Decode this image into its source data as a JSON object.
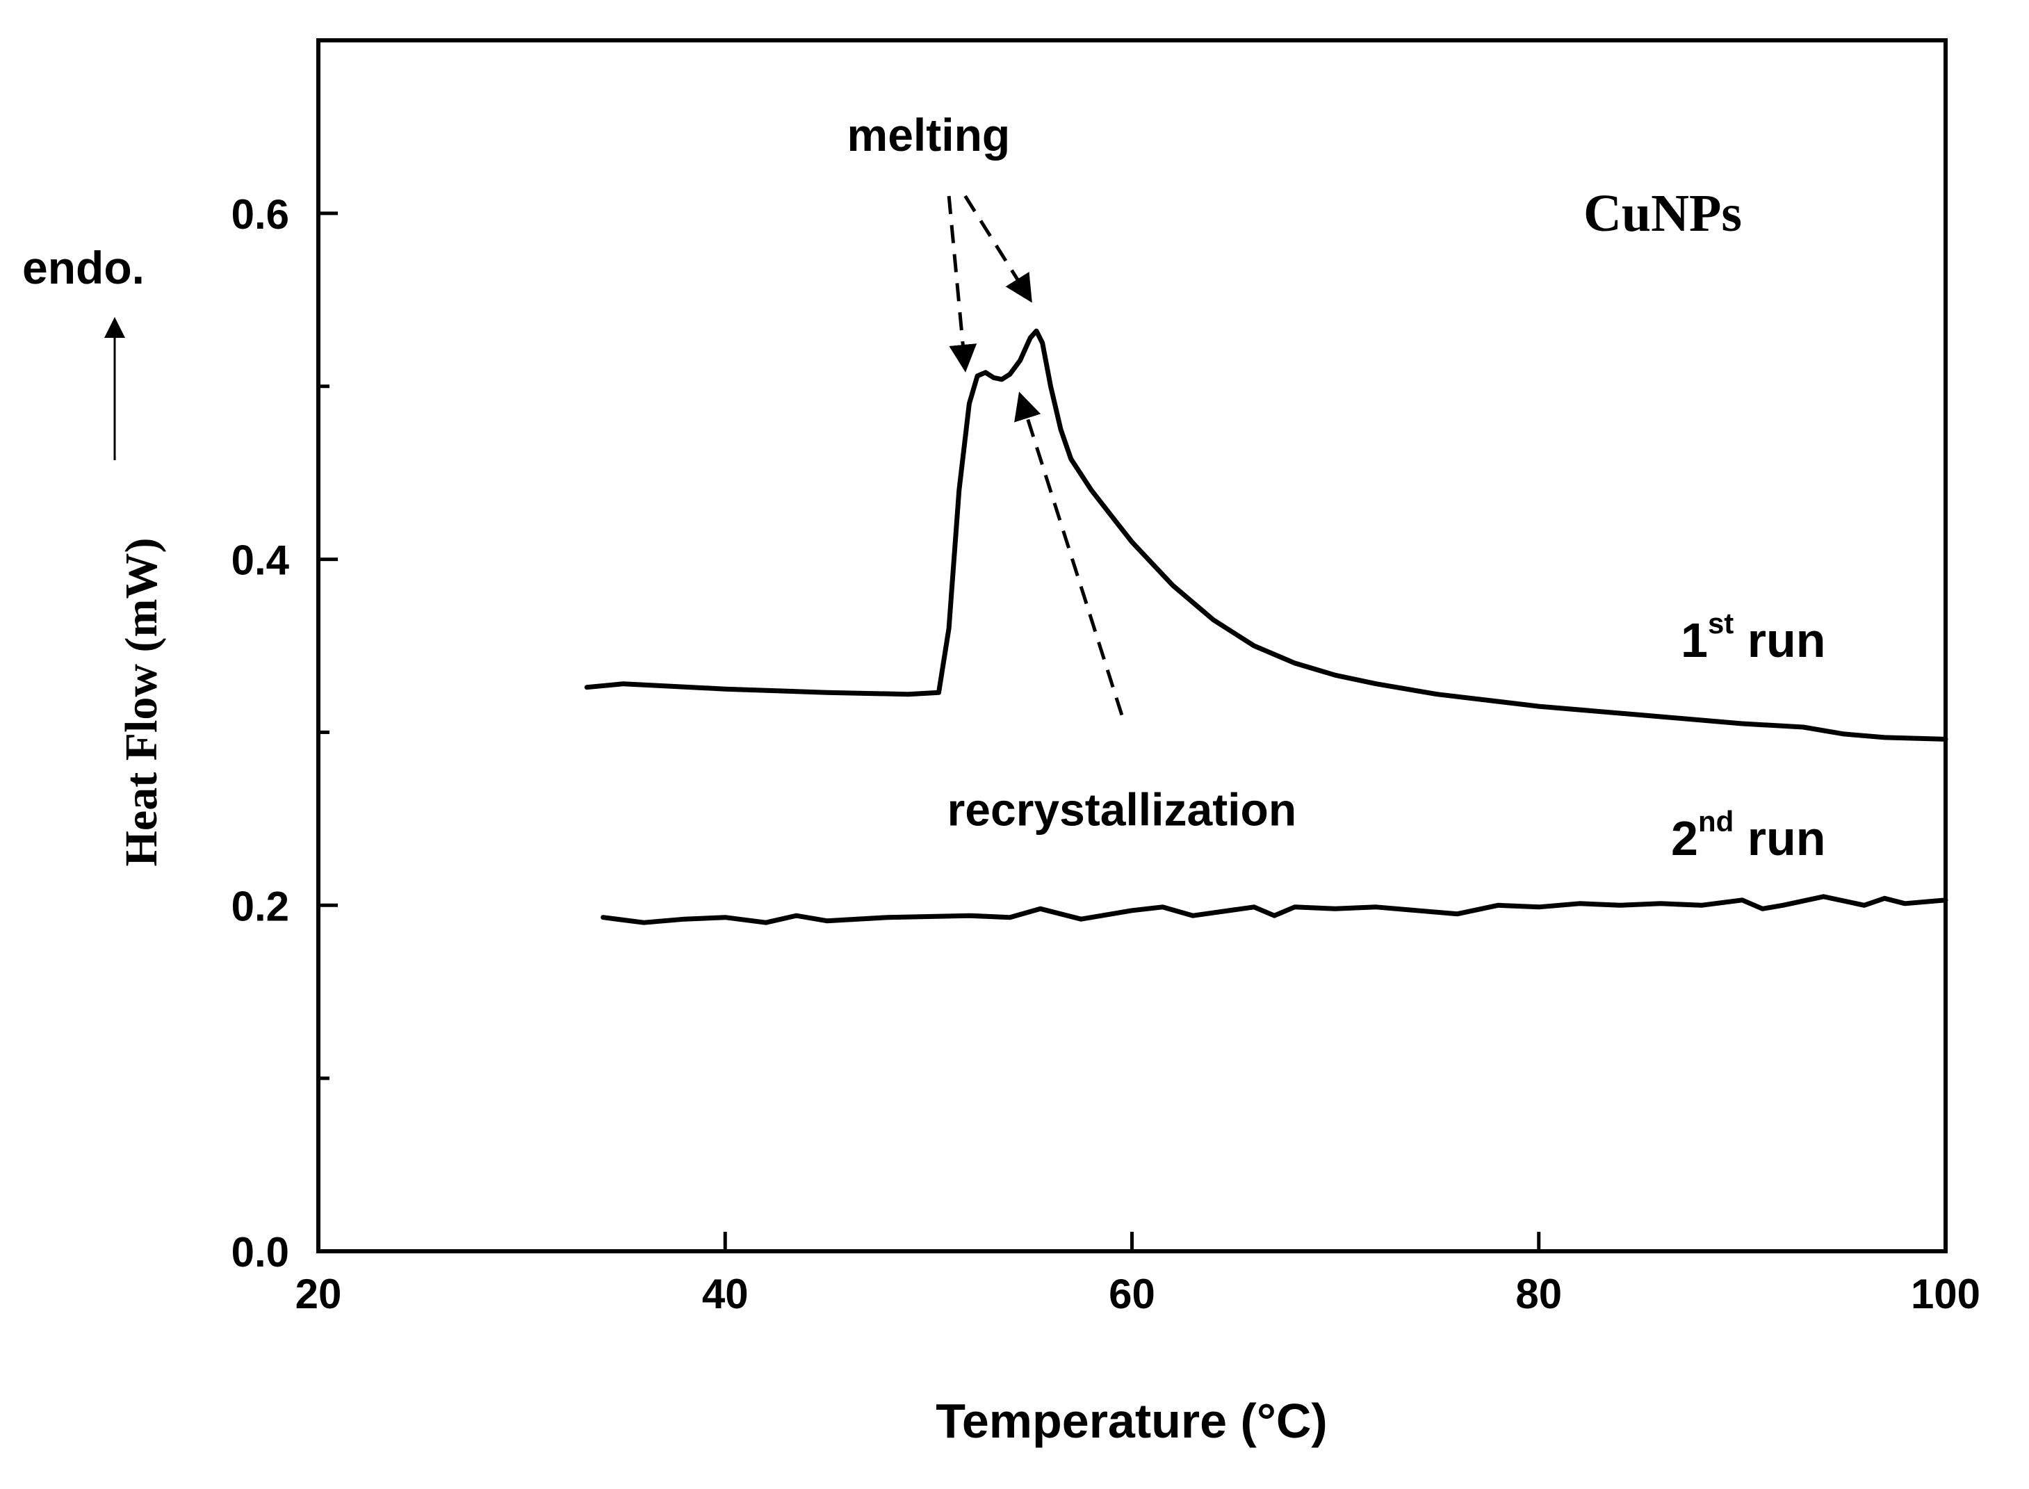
{
  "chart_data": {
    "type": "line",
    "title": "",
    "xlabel": "Temperature (°C)",
    "ylabel": "Heat Flow (mW)",
    "xlim": [
      20,
      100
    ],
    "ylim": [
      0.0,
      0.7
    ],
    "x_ticks": [
      20,
      40,
      60,
      80,
      100
    ],
    "x_tick_labels": [
      "20",
      "40",
      "60",
      "80",
      "100"
    ],
    "y_ticks": [
      0.0,
      0.2,
      0.4,
      0.6
    ],
    "y_tick_labels": [
      "0.0",
      "0.2",
      "0.4",
      "0.6"
    ],
    "y_minor_ticks": [
      0.1,
      0.3,
      0.5
    ],
    "grid": false,
    "sample_label": "CuNPs",
    "endo_label": "endo.",
    "series": [
      {
        "name": "1st run",
        "label_main": "1",
        "label_sup": "st",
        "label_rest": " run",
        "x": [
          33.2,
          35,
          40,
          45,
          49,
          50.5,
          51,
          51.5,
          52,
          52.4,
          52.8,
          53.2,
          53.6,
          54.0,
          54.5,
          55.0,
          55.3,
          55.6,
          56.0,
          56.5,
          57.0,
          58,
          59,
          60,
          62,
          64,
          66,
          68,
          70,
          72,
          75,
          80,
          85,
          90,
          93,
          95,
          97,
          100
        ],
        "y": [
          0.326,
          0.328,
          0.325,
          0.323,
          0.322,
          0.323,
          0.36,
          0.44,
          0.49,
          0.506,
          0.508,
          0.505,
          0.504,
          0.507,
          0.515,
          0.528,
          0.532,
          0.525,
          0.5,
          0.475,
          0.458,
          0.44,
          0.425,
          0.41,
          0.385,
          0.365,
          0.35,
          0.34,
          0.333,
          0.328,
          0.322,
          0.315,
          0.31,
          0.305,
          0.303,
          0.299,
          0.297,
          0.296
        ]
      },
      {
        "name": "2nd run",
        "label_main": "2",
        "label_sup": "nd",
        "label_rest": " run",
        "x": [
          34,
          36,
          38,
          40,
          42,
          43.5,
          45,
          48,
          52,
          54,
          55.5,
          57.5,
          60,
          61.5,
          63,
          66,
          67,
          68,
          70,
          72,
          74,
          76,
          78,
          80,
          82,
          84,
          86,
          88,
          90,
          91,
          92,
          94,
          96,
          97,
          98,
          100
        ],
        "y": [
          0.193,
          0.19,
          0.192,
          0.193,
          0.19,
          0.194,
          0.191,
          0.193,
          0.194,
          0.193,
          0.198,
          0.192,
          0.197,
          0.199,
          0.194,
          0.199,
          0.194,
          0.199,
          0.198,
          0.199,
          0.197,
          0.195,
          0.2,
          0.199,
          0.201,
          0.2,
          0.201,
          0.2,
          0.203,
          0.198,
          0.2,
          0.205,
          0.2,
          0.204,
          0.201,
          0.203
        ]
      }
    ],
    "annotations": [
      {
        "text": "melting",
        "kind": "label",
        "x": 50,
        "y": 0.645
      },
      {
        "text": "recrystallization",
        "kind": "label",
        "x": 59.5,
        "y": 0.255
      },
      {
        "kind": "dashed-arrow",
        "x1": 51.0,
        "y1": 0.61,
        "x2": 51.8,
        "y2": 0.51
      },
      {
        "kind": "dashed-arrow",
        "x1": 51.8,
        "y1": 0.61,
        "x2": 55.0,
        "y2": 0.55
      },
      {
        "kind": "dashed-arrow",
        "x1": 59.5,
        "y1": 0.31,
        "x2": 54.5,
        "y2": 0.495
      }
    ]
  },
  "colors": {
    "line": "#000000",
    "background": "#ffffff"
  }
}
